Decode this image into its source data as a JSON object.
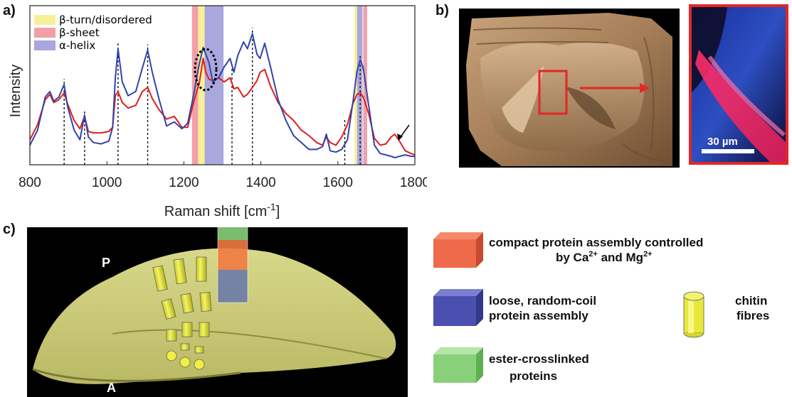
{
  "panel_labels": {
    "a": "a)",
    "b": "b)",
    "c": "c)"
  },
  "colors": {
    "beta_turn": "#f7ef9a",
    "beta_sheet": "#f2a0a8",
    "alpha_helix": "#a9a7dd",
    "series_red": "#e01e1e",
    "series_blue": "#3344aa",
    "red_box": "#e32626",
    "chitin": "#e8e838",
    "cube_red": "#ef6a4a",
    "cube_blue": "#4a4fb0",
    "cube_green": "#88d07a"
  },
  "chart_data": {
    "type": "line",
    "xlabel": "Raman shift [cm",
    "xlabel_sup": "-1",
    "xlabel_tail": "]",
    "ylabel": "Intensity",
    "xlim": [
      800,
      1800
    ],
    "ylim": [
      0,
      1
    ],
    "xticks": [
      800,
      1000,
      1200,
      1400,
      1600,
      1800
    ],
    "legend": [
      {
        "label": "β-turn/disordered",
        "color": "#f7ef9a"
      },
      {
        "label": "β-sheet",
        "color": "#f2a0a8"
      },
      {
        "label": "α-helix",
        "color": "#a9a7dd"
      }
    ],
    "bands": [
      {
        "x0": 1221,
        "x1": 1237,
        "color": "#f2a0a8"
      },
      {
        "x0": 1237,
        "x1": 1254,
        "color": "#f7ef9a"
      },
      {
        "x0": 1254,
        "x1": 1303,
        "color": "#a9a7dd"
      },
      {
        "x0": 1643,
        "x1": 1650,
        "color": "#f7ef9a"
      },
      {
        "x0": 1650,
        "x1": 1664,
        "color": "#a9a7dd"
      },
      {
        "x0": 1666,
        "x1": 1676,
        "color": "#f2a0a8"
      }
    ],
    "dashed_lines": [
      889,
      942,
      1029,
      1106,
      1325,
      1378,
      1618,
      1658
    ],
    "series": [
      {
        "color": "#e01e1e",
        "x": [
          800,
          820,
          840,
          852,
          862,
          875,
          889,
          898,
          915,
          930,
          942,
          952,
          965,
          985,
          1005,
          1015,
          1022,
          1029,
          1040,
          1055,
          1075,
          1092,
          1106,
          1118,
          1135,
          1155,
          1175,
          1195,
          1210,
          1225,
          1240,
          1250,
          1257,
          1265,
          1275,
          1290,
          1305,
          1320,
          1330,
          1340,
          1355,
          1365,
          1378,
          1390,
          1398,
          1410,
          1425,
          1445,
          1465,
          1485,
          1505,
          1525,
          1545,
          1560,
          1570,
          1580,
          1595,
          1610,
          1625,
          1640,
          1650,
          1658,
          1666,
          1680,
          1695,
          1710,
          1725,
          1738,
          1748,
          1760,
          1775,
          1790,
          1800
        ],
        "y": [
          0.13,
          0.24,
          0.42,
          0.46,
          0.4,
          0.42,
          0.47,
          0.39,
          0.27,
          0.21,
          0.3,
          0.19,
          0.18,
          0.18,
          0.19,
          0.22,
          0.45,
          0.48,
          0.4,
          0.36,
          0.38,
          0.48,
          0.51,
          0.43,
          0.35,
          0.28,
          0.3,
          0.22,
          0.22,
          0.4,
          0.54,
          0.72,
          0.62,
          0.57,
          0.56,
          0.58,
          0.55,
          0.58,
          0.5,
          0.51,
          0.44,
          0.46,
          0.51,
          0.56,
          0.62,
          0.64,
          0.52,
          0.4,
          0.32,
          0.27,
          0.2,
          0.16,
          0.11,
          0.09,
          0.15,
          0.11,
          0.09,
          0.15,
          0.24,
          0.4,
          0.46,
          0.47,
          0.44,
          0.32,
          0.14,
          0.09,
          0.1,
          0.15,
          0.17,
          0.12,
          0.05,
          0.03,
          0.02
        ]
      },
      {
        "color": "#3344aa",
        "x": [
          800,
          820,
          840,
          852,
          862,
          875,
          889,
          898,
          915,
          930,
          942,
          952,
          965,
          985,
          1005,
          1015,
          1022,
          1029,
          1040,
          1055,
          1075,
          1092,
          1106,
          1118,
          1135,
          1155,
          1175,
          1195,
          1210,
          1225,
          1240,
          1250,
          1257,
          1265,
          1275,
          1290,
          1305,
          1320,
          1330,
          1340,
          1355,
          1365,
          1378,
          1390,
          1398,
          1410,
          1425,
          1445,
          1465,
          1485,
          1505,
          1525,
          1545,
          1560,
          1570,
          1580,
          1595,
          1610,
          1625,
          1640,
          1650,
          1658,
          1666,
          1680,
          1695,
          1710,
          1725,
          1738,
          1748,
          1760,
          1775,
          1790,
          1800
        ],
        "y": [
          0.09,
          0.2,
          0.44,
          0.48,
          0.41,
          0.44,
          0.53,
          0.37,
          0.2,
          0.13,
          0.31,
          0.15,
          0.11,
          0.1,
          0.12,
          0.22,
          0.58,
          0.79,
          0.55,
          0.45,
          0.48,
          0.65,
          0.78,
          0.62,
          0.43,
          0.23,
          0.26,
          0.21,
          0.25,
          0.45,
          0.68,
          0.8,
          0.75,
          0.69,
          0.55,
          0.58,
          0.66,
          0.72,
          0.62,
          0.74,
          0.84,
          0.79,
          0.9,
          0.75,
          0.72,
          0.83,
          0.66,
          0.42,
          0.27,
          0.16,
          0.11,
          0.06,
          0.06,
          0.08,
          0.17,
          0.05,
          0.04,
          0.06,
          0.13,
          0.42,
          0.63,
          0.71,
          0.65,
          0.38,
          0.09,
          0.03,
          0.02,
          0.01,
          0.0,
          0.01,
          0.02,
          0.01,
          0.01
        ]
      }
    ]
  },
  "panel_b": {
    "scale_bar_label": "30 µm"
  },
  "panel_c": {
    "label_p": "P",
    "label_a": "A"
  },
  "legend_c": {
    "red": {
      "line1_pre": "compact protein assembly controlled",
      "line2_pre": "by Ca",
      "sup1": "2+",
      "mid": " and Mg",
      "sup2": "2+"
    },
    "blue": {
      "line1": "loose, random-coil",
      "line2": "protein assembly"
    },
    "green": {
      "line1": "ester-crosslinked",
      "line2": "proteins"
    },
    "chitin": {
      "line1": "chitin",
      "line2": "fibres"
    }
  }
}
